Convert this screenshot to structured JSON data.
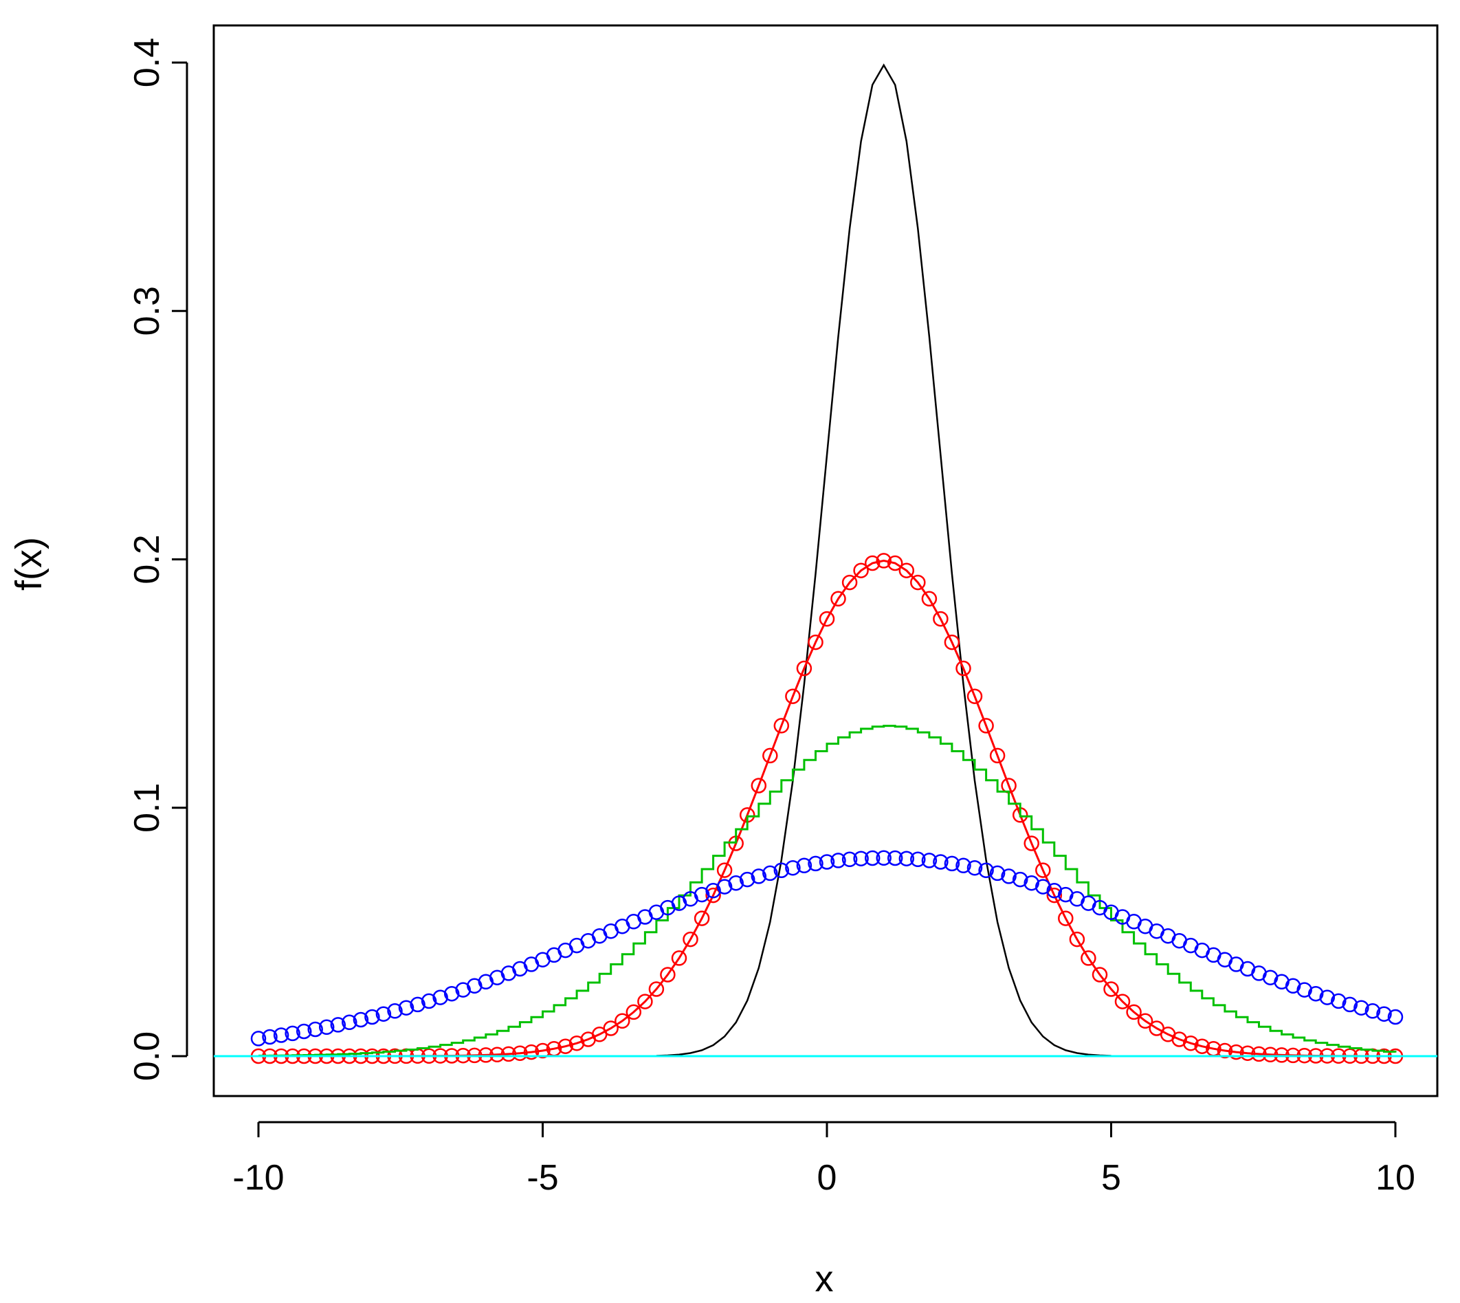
{
  "chart_data": {
    "type": "line",
    "title": "",
    "xlabel": "x",
    "ylabel": "f(x)",
    "xlim": [
      -10,
      10
    ],
    "ylim": [
      0,
      0.4
    ],
    "x_ticks": [
      "-10",
      "-5",
      "0",
      "5",
      "10"
    ],
    "y_ticks": [
      "0.0",
      "0.1",
      "0.2",
      "0.3",
      "0.4"
    ],
    "grid": false,
    "legend": "none",
    "colors": {
      "axes": "#000000",
      "black_series": "#000000",
      "red_series": "#ff0000",
      "green_series": "#00c000",
      "blue_series": "#0000ff",
      "cyan_series": "#00ffff"
    },
    "series": [
      {
        "style": "line",
        "color": "#000000",
        "distribution": "normal",
        "mean": 1,
        "sd": 1,
        "x_range": [
          -3,
          4.9
        ],
        "step": 0.2
      },
      {
        "style": "line+circles",
        "color": "#ff0000",
        "distribution": "normal",
        "mean": 1,
        "sd": 2,
        "x_range": [
          -10,
          10
        ],
        "step": 0.2
      },
      {
        "style": "step",
        "color": "#00c000",
        "distribution": "normal",
        "mean": 1,
        "sd": 3,
        "x_range": [
          -10,
          10
        ],
        "step": 0.2
      },
      {
        "style": "circles",
        "color": "#0000ff",
        "distribution": "normal",
        "mean": 1,
        "sd": 5,
        "x_range": [
          -10,
          10
        ],
        "step": 0.2
      },
      {
        "style": "hline",
        "color": "#00ffff",
        "y": 0
      }
    ]
  }
}
